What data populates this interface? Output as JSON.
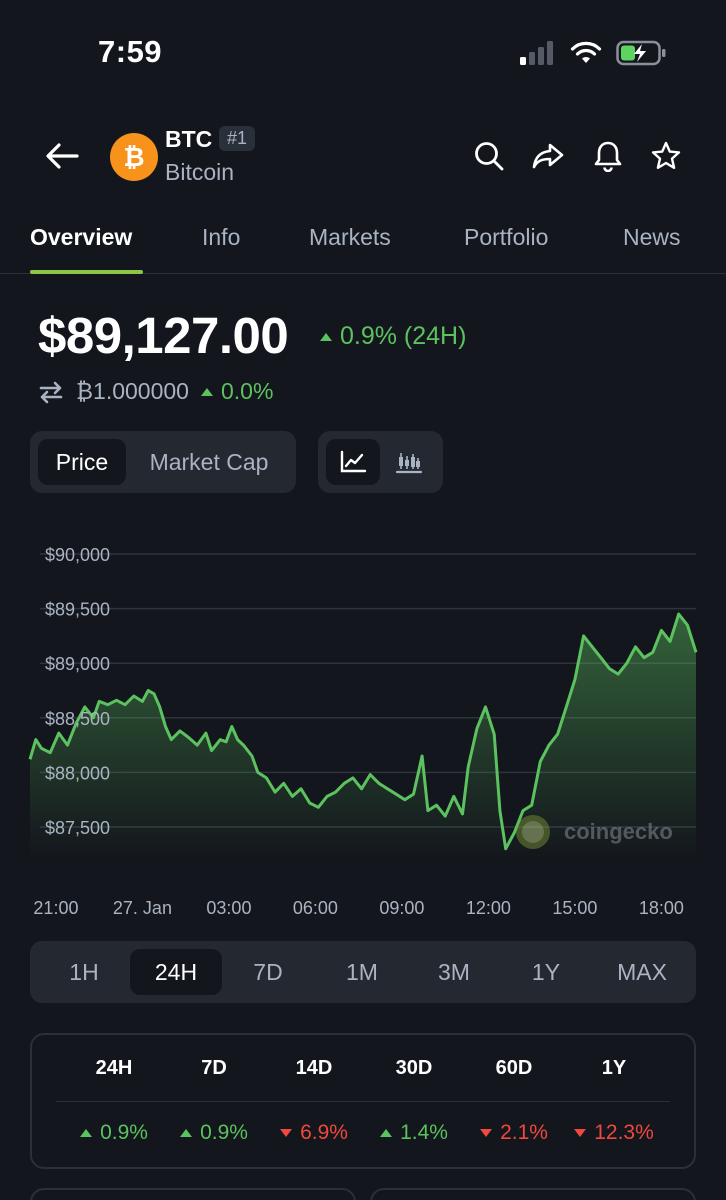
{
  "status_bar": {
    "time": "7:59"
  },
  "header": {
    "symbol": "BTC",
    "rank": "#1",
    "name": "Bitcoin",
    "icons": [
      "back-arrow-icon",
      "search-icon",
      "share-icon",
      "bell-icon",
      "star-icon"
    ]
  },
  "tabs": [
    {
      "label": "Overview",
      "active": true
    },
    {
      "label": "Info"
    },
    {
      "label": "Markets"
    },
    {
      "label": "Portfolio"
    },
    {
      "label": "News"
    }
  ],
  "price": {
    "value": "$89,127.00",
    "change": "0.9% (24H)",
    "btc_value": "₿1.000000",
    "btc_change": "0.0%"
  },
  "chart_toggle": {
    "price_label": "Price",
    "market_cap_label": "Market Cap"
  },
  "chart_data": {
    "type": "area",
    "ylim": [
      87250,
      90100
    ],
    "yticks": [
      "$90,000",
      "$89,500",
      "$89,000",
      "$88,500",
      "$88,000",
      "$87,500"
    ],
    "ytick_values": [
      90000,
      89500,
      89000,
      88500,
      88000,
      87500
    ],
    "xticks": [
      "21:00",
      "27. Jan",
      "03:00",
      "06:00",
      "09:00",
      "12:00",
      "15:00",
      "18:00"
    ],
    "xtick_hours": [
      0,
      3,
      6,
      9,
      12,
      15,
      18,
      21
    ],
    "watermark": "coingecko",
    "line_color": "#5cc15f",
    "points": [
      [
        -0.9,
        88120
      ],
      [
        -0.7,
        88300
      ],
      [
        -0.5,
        88220
      ],
      [
        -0.2,
        88180
      ],
      [
        0.1,
        88360
      ],
      [
        0.4,
        88250
      ],
      [
        0.7,
        88450
      ],
      [
        1.0,
        88600
      ],
      [
        1.3,
        88500
      ],
      [
        1.5,
        88650
      ],
      [
        1.8,
        88620
      ],
      [
        2.1,
        88660
      ],
      [
        2.4,
        88620
      ],
      [
        2.7,
        88700
      ],
      [
        3.0,
        88650
      ],
      [
        3.2,
        88750
      ],
      [
        3.4,
        88720
      ],
      [
        3.6,
        88600
      ],
      [
        3.8,
        88420
      ],
      [
        4.0,
        88300
      ],
      [
        4.3,
        88380
      ],
      [
        4.6,
        88320
      ],
      [
        4.9,
        88250
      ],
      [
        5.2,
        88360
      ],
      [
        5.4,
        88200
      ],
      [
        5.7,
        88300
      ],
      [
        5.9,
        88280
      ],
      [
        6.1,
        88420
      ],
      [
        6.3,
        88300
      ],
      [
        6.5,
        88250
      ],
      [
        6.8,
        88150
      ],
      [
        7.0,
        88000
      ],
      [
        7.3,
        87950
      ],
      [
        7.6,
        87820
      ],
      [
        7.9,
        87900
      ],
      [
        8.2,
        87780
      ],
      [
        8.5,
        87850
      ],
      [
        8.8,
        87720
      ],
      [
        9.1,
        87680
      ],
      [
        9.4,
        87780
      ],
      [
        9.7,
        87820
      ],
      [
        10.0,
        87900
      ],
      [
        10.3,
        87950
      ],
      [
        10.6,
        87850
      ],
      [
        10.9,
        87980
      ],
      [
        11.2,
        87900
      ],
      [
        11.5,
        87850
      ],
      [
        11.8,
        87800
      ],
      [
        12.1,
        87750
      ],
      [
        12.4,
        87800
      ],
      [
        12.7,
        88150
      ],
      [
        12.9,
        87650
      ],
      [
        13.2,
        87700
      ],
      [
        13.5,
        87600
      ],
      [
        13.8,
        87780
      ],
      [
        14.1,
        87620
      ],
      [
        14.3,
        88050
      ],
      [
        14.6,
        88400
      ],
      [
        14.9,
        88600
      ],
      [
        15.2,
        88350
      ],
      [
        15.4,
        87650
      ],
      [
        15.6,
        87300
      ],
      [
        15.9,
        87450
      ],
      [
        16.2,
        87650
      ],
      [
        16.5,
        87700
      ],
      [
        16.8,
        88100
      ],
      [
        17.1,
        88250
      ],
      [
        17.4,
        88350
      ],
      [
        17.7,
        88600
      ],
      [
        18.0,
        88850
      ],
      [
        18.3,
        89250
      ],
      [
        18.6,
        89150
      ],
      [
        18.9,
        89050
      ],
      [
        19.2,
        88950
      ],
      [
        19.5,
        88900
      ],
      [
        19.8,
        89000
      ],
      [
        20.1,
        89150
      ],
      [
        20.4,
        89050
      ],
      [
        20.7,
        89100
      ],
      [
        21.0,
        89300
      ],
      [
        21.3,
        89200
      ],
      [
        21.6,
        89450
      ],
      [
        21.9,
        89350
      ],
      [
        22.2,
        89100
      ]
    ]
  },
  "ranges": [
    {
      "label": "1H"
    },
    {
      "label": "24H",
      "active": true
    },
    {
      "label": "7D"
    },
    {
      "label": "1M"
    },
    {
      "label": "3M"
    },
    {
      "label": "1Y"
    },
    {
      "label": "MAX"
    }
  ],
  "performance": [
    {
      "period": "24H",
      "value": "0.9%",
      "dir": "up"
    },
    {
      "period": "7D",
      "value": "0.9%",
      "dir": "up"
    },
    {
      "period": "14D",
      "value": "6.9%",
      "dir": "down"
    },
    {
      "period": "30D",
      "value": "1.4%",
      "dir": "up"
    },
    {
      "period": "60D",
      "value": "2.1%",
      "dir": "down"
    },
    {
      "period": "1Y",
      "value": "12.3%",
      "dir": "down"
    }
  ]
}
